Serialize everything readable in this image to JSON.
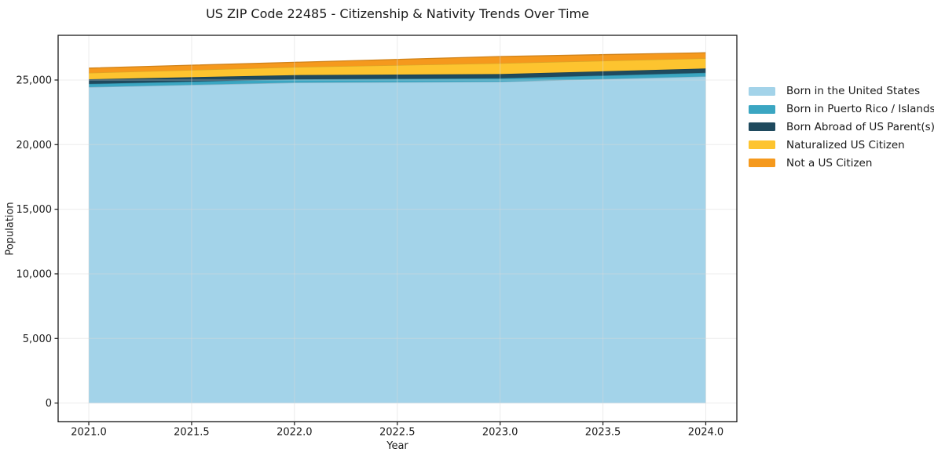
{
  "figure": {
    "background": "#ffffff",
    "text_color": "#1a1a1a",
    "spine_color": "#1a1a1a",
    "grid_color": "#d9d9d9"
  },
  "chart_data": {
    "type": "area",
    "stacked": true,
    "title": "US ZIP Code 22485 - Citizenship & Nativity Trends Over Time",
    "xlabel": "Year",
    "ylabel": "Population",
    "x": [
      2021,
      2022,
      2023,
      2024
    ],
    "series": [
      {
        "name": "Born in the United States",
        "color": "#a3d3e9",
        "values": [
          24450,
          24800,
          24870,
          25280
        ]
      },
      {
        "name": "Born in Puerto Rico / Islands",
        "color": "#3ba6c2",
        "values": [
          250,
          250,
          260,
          280
        ]
      },
      {
        "name": "Born Abroad of US Parent(s)",
        "color": "#1f4a5e",
        "values": [
          360,
          330,
          330,
          330
        ]
      },
      {
        "name": "Naturalized US Citizen",
        "color": "#fdc42f",
        "values": [
          490,
          620,
          840,
          790
        ]
      },
      {
        "name": "Not a US Citizen",
        "color": "#f5991d",
        "values": [
          370,
          370,
          520,
          430
        ]
      }
    ],
    "totals": [
      25920,
      26370,
      26820,
      27110
    ],
    "xticks": [
      2021.0,
      2021.5,
      2022.0,
      2022.5,
      2023.0,
      2023.5,
      2024.0
    ],
    "xtick_labels": [
      "2021.0",
      "2021.5",
      "2022.0",
      "2022.5",
      "2023.0",
      "2023.5",
      "2024.0"
    ],
    "yticks": [
      0,
      5000,
      10000,
      15000,
      20000,
      25000
    ],
    "ytick_labels": [
      "0",
      "5,000",
      "10,000",
      "15,000",
      "20,000",
      "25,000"
    ],
    "xlim": [
      2020.851,
      2024.151
    ],
    "ylim": [
      -1450,
      28460
    ],
    "grid": true,
    "legend_position": "right-outside"
  }
}
